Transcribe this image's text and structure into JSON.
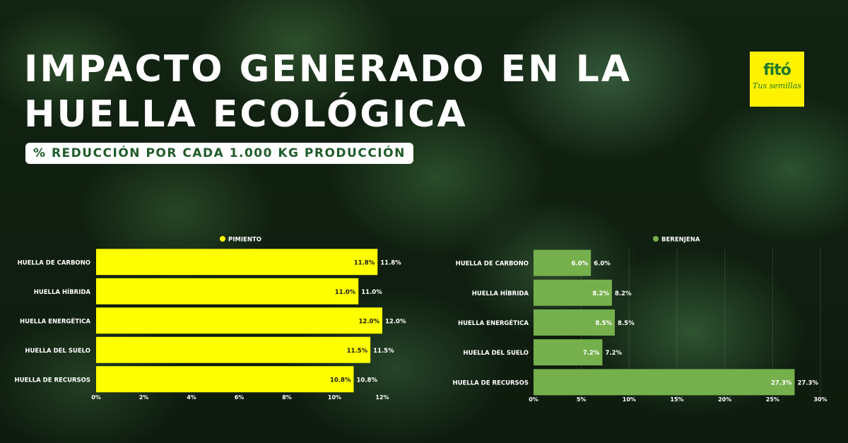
{
  "title_line1": "IMPACTO GENERADO EN LA",
  "title_line2": "HUELLA ECOLÓGICA",
  "subtitle": "% REDUCCIÓN POR CADA 1.000 KG PRODUCCIÓN",
  "logo": {
    "mark": "fitó",
    "tagline": "Tus semillas",
    "bg_color": "#fff200",
    "text_color": "#1f7a2c"
  },
  "chart_data": [
    {
      "type": "bar",
      "orientation": "horizontal",
      "legend": "PIMIENTO",
      "legend_position": "top",
      "color": "#ffff00",
      "categories": [
        "HUELLA DE CARBONO",
        "HUELLA HÍBRIDA",
        "HUELLA ENERGÉTICA",
        "HUELLA DEL SUELO",
        "HUELLA DE RECURSOS"
      ],
      "values": [
        11.8,
        11.0,
        12.0,
        11.5,
        10.8
      ],
      "value_labels": [
        "11.8%",
        "11.0%",
        "12.0%",
        "11.5%",
        "10.8%"
      ],
      "xlim": [
        0,
        12
      ],
      "ticks": [
        0,
        2,
        4,
        6,
        8,
        10,
        12
      ],
      "tick_labels": [
        "0%",
        "2%",
        "4%",
        "6%",
        "8%",
        "10%",
        "12%"
      ],
      "grid": false
    },
    {
      "type": "bar",
      "orientation": "horizontal",
      "legend": "BERENJENA",
      "legend_position": "top",
      "color": "#76b04d",
      "categories": [
        "HUELLA DE CARBONO",
        "HUELLA HÍBRIDA",
        "HUELLA ENERGÉTICA",
        "HUELLA DEL SUELO",
        "HUELLA DE RECURSOS"
      ],
      "values": [
        6.0,
        8.2,
        8.5,
        7.2,
        27.3
      ],
      "value_labels": [
        "6.0%",
        "8.2%",
        "8.5%",
        "7.2%",
        "27.3%"
      ],
      "xlim": [
        0,
        30
      ],
      "ticks": [
        0,
        5,
        10,
        15,
        20,
        25,
        30
      ],
      "tick_labels": [
        "0%",
        "5%",
        "10%",
        "15%",
        "20%",
        "25%",
        "30%"
      ],
      "grid": true
    }
  ]
}
